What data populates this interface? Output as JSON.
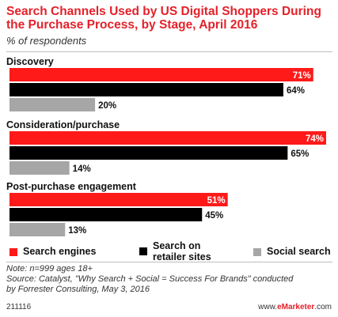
{
  "chart_data": {
    "type": "bar",
    "orientation": "horizontal",
    "title": "Search Channels Used by US Digital Shoppers During the Purchase Process, by Stage, April 2016",
    "subtitle": "% of respondents",
    "categories": [
      "Discovery",
      "Consideration/purchase",
      "Post-purchase engagement"
    ],
    "series": [
      {
        "name": "Search engines",
        "color": "#ff1a1a",
        "values": [
          71,
          74,
          51
        ]
      },
      {
        "name": "Search on retailer sites",
        "color": "#000000",
        "values": [
          64,
          65,
          45
        ]
      },
      {
        "name": "Social search",
        "color": "#a6a6a6",
        "values": [
          20,
          14,
          13
        ]
      }
    ],
    "value_suffix": "%",
    "xlim": [
      0,
      74
    ],
    "grid": false,
    "legend_position": "bottom"
  },
  "note": {
    "line1": "Note: n=999 ages 18+",
    "line2": "Source: Catalyst, \"Why Search + Social = Success For Brands\" conducted",
    "line3": "by Forrester Consulting, May 3, 2016"
  },
  "footer": {
    "id": "211116",
    "brand_prefix": "www.",
    "brand_em": "eMarketer",
    "brand_suffix": ".com"
  }
}
